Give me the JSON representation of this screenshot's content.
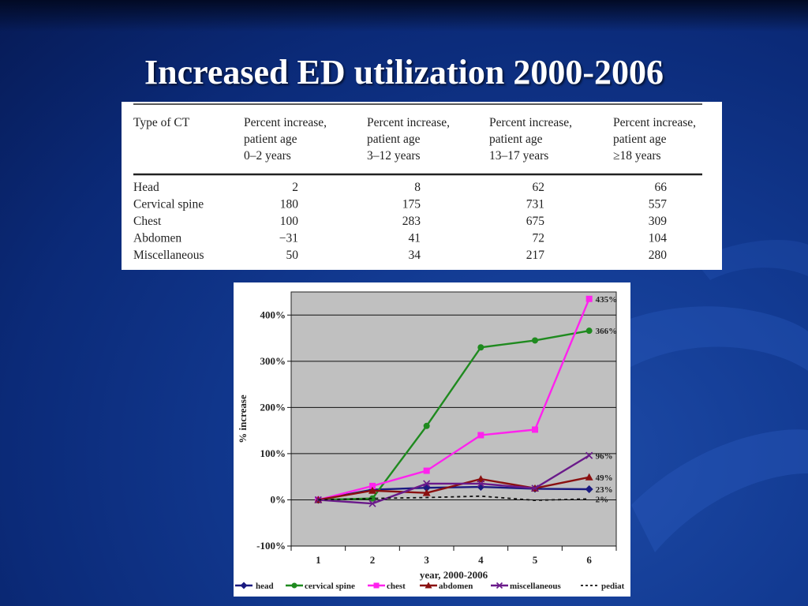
{
  "slide": {
    "title": "Increased ED utilization 2000-2006"
  },
  "table": {
    "headers": [
      [
        "Type of CT"
      ],
      [
        "Percent increase,",
        "patient age",
        "0–2 years"
      ],
      [
        "Percent increase,",
        "patient age",
        "3–12 years"
      ],
      [
        "Percent increase,",
        "patient age",
        "13–17 years"
      ],
      [
        "Percent increase,",
        "patient age",
        "≥18 years"
      ]
    ],
    "rows": [
      [
        "Head",
        "2",
        "8",
        "62",
        "66"
      ],
      [
        "Cervical spine",
        "180",
        "175",
        "731",
        "557"
      ],
      [
        "Chest",
        "100",
        "283",
        "675",
        "309"
      ],
      [
        "Abdomen",
        "−31",
        "41",
        "72",
        "104"
      ],
      [
        "Miscellaneous",
        "50",
        "34",
        "217",
        "280"
      ]
    ]
  },
  "chart_data": {
    "type": "line",
    "x": [
      1,
      2,
      3,
      4,
      5,
      6
    ],
    "xlabel": "year, 2000-2006",
    "ylabel": "% increase",
    "ylim": [
      -100,
      450
    ],
    "yticks": [
      -100,
      0,
      100,
      200,
      300,
      400
    ],
    "ytick_labels": [
      "-100%",
      "0%",
      "100%",
      "200%",
      "300%",
      "400%"
    ],
    "grid": true,
    "plot_background": "#c0c0c0",
    "legend_position": "bottom",
    "series": [
      {
        "name": "head",
        "color": "#1a1a80",
        "marker": "diamond",
        "dash": false,
        "values": [
          0,
          22,
          26,
          28,
          24,
          23
        ],
        "end_label": "23%"
      },
      {
        "name": "cervical spine",
        "color": "#1f8a1f",
        "marker": "circle",
        "dash": false,
        "values": [
          0,
          3,
          160,
          330,
          345,
          366
        ],
        "end_label": "366%"
      },
      {
        "name": "chest",
        "color": "#ff22ee",
        "marker": "square",
        "dash": false,
        "values": [
          0,
          30,
          63,
          140,
          152,
          435
        ],
        "end_label": "435%"
      },
      {
        "name": "abdomen",
        "color": "#8a1010",
        "marker": "triangle",
        "dash": false,
        "values": [
          0,
          20,
          15,
          45,
          25,
          49
        ],
        "end_label": "49%"
      },
      {
        "name": "miscellaneous",
        "color": "#6a1a8a",
        "marker": "x",
        "dash": false,
        "values": [
          0,
          -8,
          35,
          35,
          25,
          96
        ],
        "end_label": "96%"
      },
      {
        "name": "pediatric volume",
        "color": "#111111",
        "marker": "none",
        "dash": true,
        "values": [
          0,
          3,
          5,
          8,
          -1,
          2
        ],
        "end_label": "2%"
      }
    ],
    "legend_labels": [
      "head",
      "cervical spine",
      "chest",
      "abdomen",
      "miscellaneous",
      "pediat"
    ]
  }
}
